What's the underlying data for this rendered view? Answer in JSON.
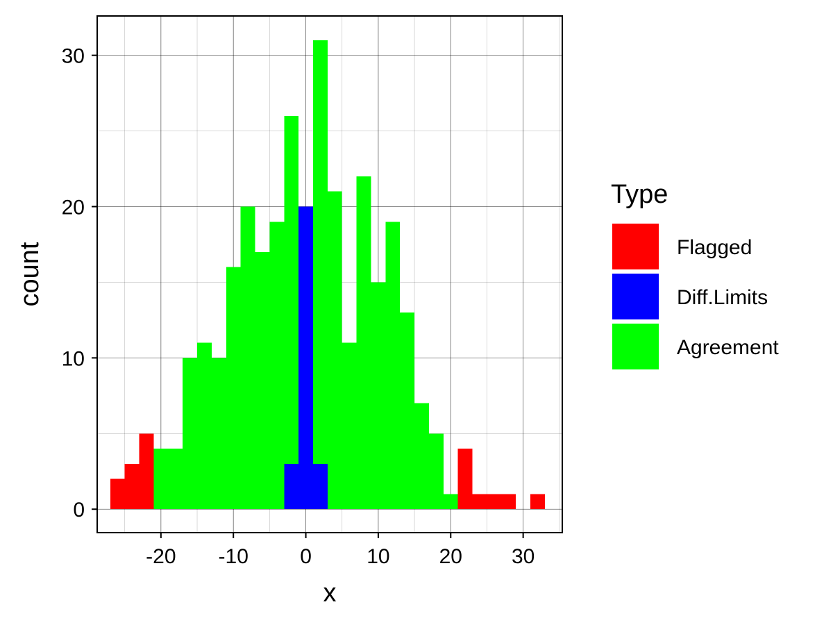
{
  "chart_data": {
    "type": "bar",
    "subtype": "stacked-histogram",
    "xlabel": "x",
    "ylabel": "count",
    "xlim": [
      -28.8,
      35.4
    ],
    "ylim": [
      -1.55,
      32.6
    ],
    "x_ticks": [
      -20,
      -10,
      0,
      10,
      20,
      30
    ],
    "x_tick_labels": [
      "-20",
      "-10",
      "0",
      "10",
      "20",
      "30"
    ],
    "y_ticks": [
      0,
      10,
      20,
      30
    ],
    "y_tick_labels": [
      "0",
      "10",
      "20",
      "30"
    ],
    "grid": true,
    "legend": {
      "title": "Type",
      "position": "right"
    },
    "bin_width": 2,
    "series": [
      {
        "name": "Flagged",
        "color": "#FF0000",
        "bins": [
          {
            "x0": -27,
            "x1": -25,
            "count": 2
          },
          {
            "x0": -25,
            "x1": -23,
            "count": 3
          },
          {
            "x0": -23,
            "x1": -21,
            "count": 5
          },
          {
            "x0": 21,
            "x1": 23,
            "count": 4
          },
          {
            "x0": 23,
            "x1": 25,
            "count": 1
          },
          {
            "x0": 25,
            "x1": 27,
            "count": 1
          },
          {
            "x0": 27,
            "x1": 29,
            "count": 1
          },
          {
            "x0": 31,
            "x1": 33,
            "count": 1
          }
        ]
      },
      {
        "name": "Diff.Limits",
        "color": "#0000FF",
        "bins": [
          {
            "x0": -3,
            "x1": -1,
            "count": 3
          },
          {
            "x0": -1,
            "x1": 1,
            "count": 20
          },
          {
            "x0": 1,
            "x1": 3,
            "count": 3
          }
        ]
      },
      {
        "name": "Agreement",
        "color": "#00FF00",
        "bins": [
          {
            "x0": -21,
            "x1": -19,
            "count": 4
          },
          {
            "x0": -19,
            "x1": -17,
            "count": 4
          },
          {
            "x0": -17,
            "x1": -15,
            "count": 10
          },
          {
            "x0": -15,
            "x1": -13,
            "count": 11
          },
          {
            "x0": -13,
            "x1": -11,
            "count": 10
          },
          {
            "x0": -11,
            "x1": -9,
            "count": 16
          },
          {
            "x0": -9,
            "x1": -7,
            "count": 20
          },
          {
            "x0": -7,
            "x1": -5,
            "count": 17
          },
          {
            "x0": -5,
            "x1": -3,
            "count": 19
          },
          {
            "x0": -3,
            "x1": -1,
            "count": 26,
            "base": 3
          },
          {
            "x0": 1,
            "x1": 3,
            "count": 31,
            "base": 3
          },
          {
            "x0": 3,
            "x1": 5,
            "count": 21
          },
          {
            "x0": 5,
            "x1": 7,
            "count": 11
          },
          {
            "x0": 7,
            "x1": 9,
            "count": 22
          },
          {
            "x0": 9,
            "x1": 11,
            "count": 15
          },
          {
            "x0": 11,
            "x1": 13,
            "count": 19
          },
          {
            "x0": 13,
            "x1": 15,
            "count": 13
          },
          {
            "x0": 15,
            "x1": 17,
            "count": 7
          },
          {
            "x0": 17,
            "x1": 19,
            "count": 5
          },
          {
            "x0": 19,
            "x1": 21,
            "count": 1
          }
        ]
      }
    ]
  }
}
